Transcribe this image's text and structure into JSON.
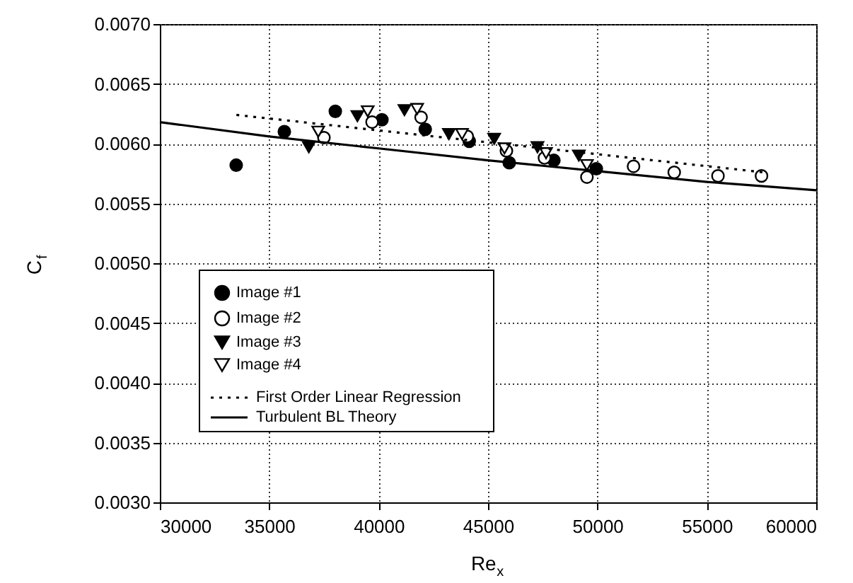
{
  "chart_data": {
    "type": "scatter",
    "xlabel": "Re$_{x}$",
    "ylabel": "C$_{f}$",
    "xlim": [
      30000,
      60000
    ],
    "ylim": [
      0.003,
      0.007
    ],
    "xticks": [
      30000,
      35000,
      40000,
      45000,
      50000,
      55000,
      60000
    ],
    "yticks": [
      {
        "value": 0.003,
        "label": "0.0030"
      },
      {
        "value": 0.0035,
        "label": "0.0035"
      },
      {
        "value": 0.004,
        "label": "0.0040"
      },
      {
        "value": 0.0045,
        "label": "0.0045"
      },
      {
        "value": 0.005,
        "label": "0.0050"
      },
      {
        "value": 0.0055,
        "label": "0.0055"
      },
      {
        "value": 0.006,
        "label": "0.0060"
      },
      {
        "value": 0.0065,
        "label": "0.0065"
      },
      {
        "value": 0.007,
        "label": "0.0070"
      }
    ],
    "grid": true,
    "legend": "bottom left",
    "series": [
      {
        "name": "Image #1",
        "marker": "circle",
        "color": "#000000",
        "x": [
          33490,
          35690,
          38020,
          40150,
          42130,
          44140,
          45970,
          48010,
          49950
        ],
        "values": [
          0.00582,
          0.0061,
          0.00627,
          0.0062,
          0.00612,
          0.00602,
          0.00584,
          0.00586,
          0.00579
        ]
      },
      {
        "name": "Image #2",
        "marker": "circle",
        "color": "#ffffff",
        "x": [
          37500,
          39700,
          41940,
          44050,
          45840,
          47580,
          49520,
          51650,
          53510,
          55510,
          57500
        ],
        "values": [
          0.00605,
          0.00618,
          0.00622,
          0.00606,
          0.00594,
          0.00588,
          0.00572,
          0.00581,
          0.00576,
          0.00573,
          0.00573
        ]
      },
      {
        "name": "Image #3",
        "marker": "triangle",
        "color": "#000000",
        "x": [
          36810,
          39030,
          41180,
          43210,
          45280,
          47260,
          49150
        ],
        "values": [
          0.00597,
          0.00623,
          0.00628,
          0.00608,
          0.00604,
          0.00597,
          0.0059
        ]
      },
      {
        "name": "Image #4",
        "marker": "triangle",
        "color": "#ffffff",
        "x": [
          37240,
          39500,
          41760,
          43810,
          45750,
          47650,
          49520
        ],
        "values": [
          0.0061,
          0.00627,
          0.00629,
          0.00608,
          0.00596,
          0.00592,
          0.00582
        ]
      },
      {
        "name": "First Order Linear Regression",
        "type": "line",
        "line_style": "dotted",
        "color": "#000000",
        "x": [
          33500,
          57600
        ],
        "values": [
          0.00624,
          0.00576
        ]
      },
      {
        "name": "Turbulent BL Theory",
        "type": "line",
        "line_style": "solid",
        "color": "#000000",
        "x": [
          30000,
          35000,
          40000,
          45000,
          50000,
          55000,
          60000
        ],
        "values": [
          0.00618,
          0.00606,
          0.00596,
          0.00586,
          0.00577,
          0.00568,
          0.00561
        ]
      }
    ]
  }
}
